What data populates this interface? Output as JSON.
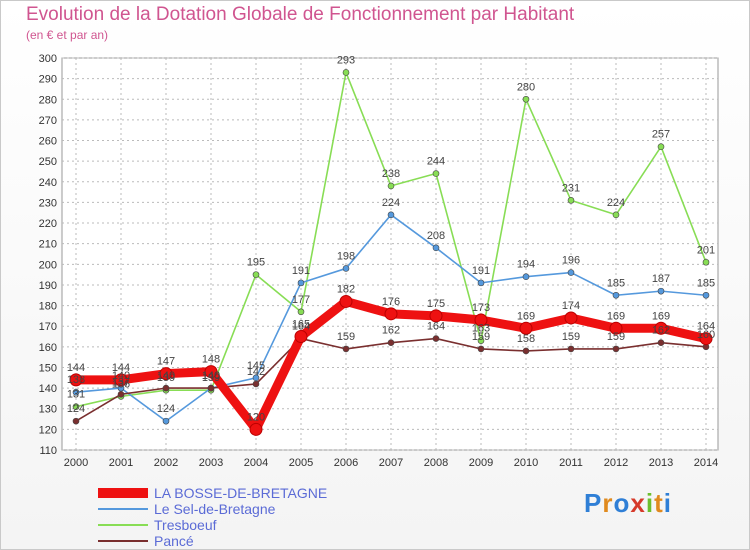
{
  "title": "Evolution de la Dotation Globale de Fonctionnement par Habitant",
  "subtitle": "(en € et par an)",
  "logo": {
    "letters": [
      "P",
      "r",
      "o",
      "x",
      "i",
      "t",
      "i"
    ]
  },
  "chart_data": {
    "type": "line",
    "x": [
      "2000",
      "2001",
      "2002",
      "2003",
      "2004",
      "2005",
      "2006",
      "2007",
      "2008",
      "2009",
      "2010",
      "2011",
      "2012",
      "2013",
      "2014"
    ],
    "ylim": [
      110,
      300
    ],
    "yticks": [
      110,
      120,
      130,
      140,
      150,
      160,
      170,
      180,
      190,
      200,
      210,
      220,
      230,
      240,
      250,
      260,
      270,
      280,
      290,
      300
    ],
    "grid": true,
    "legend_position": "bottom-left",
    "series": [
      {
        "name": "Tresboeuf",
        "color": "#88dd55",
        "values": [
          131,
          136,
          139,
          139,
          195,
          177,
          293,
          238,
          244,
          163,
          280,
          231,
          224,
          257,
          201
        ]
      },
      {
        "name": "Le Sel-de-Bretagne",
        "color": "#5599dd",
        "values": [
          138,
          140,
          124,
          140,
          145,
          191,
          198,
          224,
          208,
          191,
          194,
          196,
          185,
          187,
          185
        ]
      },
      {
        "name": "Pancé",
        "color": "#7a2f2f",
        "values": [
          124,
          137,
          140,
          140,
          142,
          164,
          159,
          162,
          164,
          159,
          158,
          159,
          159,
          162,
          160
        ]
      },
      {
        "name": "LA BOSSE-DE-BRETAGNE",
        "color": "#ee1111",
        "values": [
          144,
          144,
          147,
          148,
          120,
          165,
          182,
          176,
          175,
          173,
          169,
          174,
          169,
          169,
          164
        ]
      }
    ]
  }
}
